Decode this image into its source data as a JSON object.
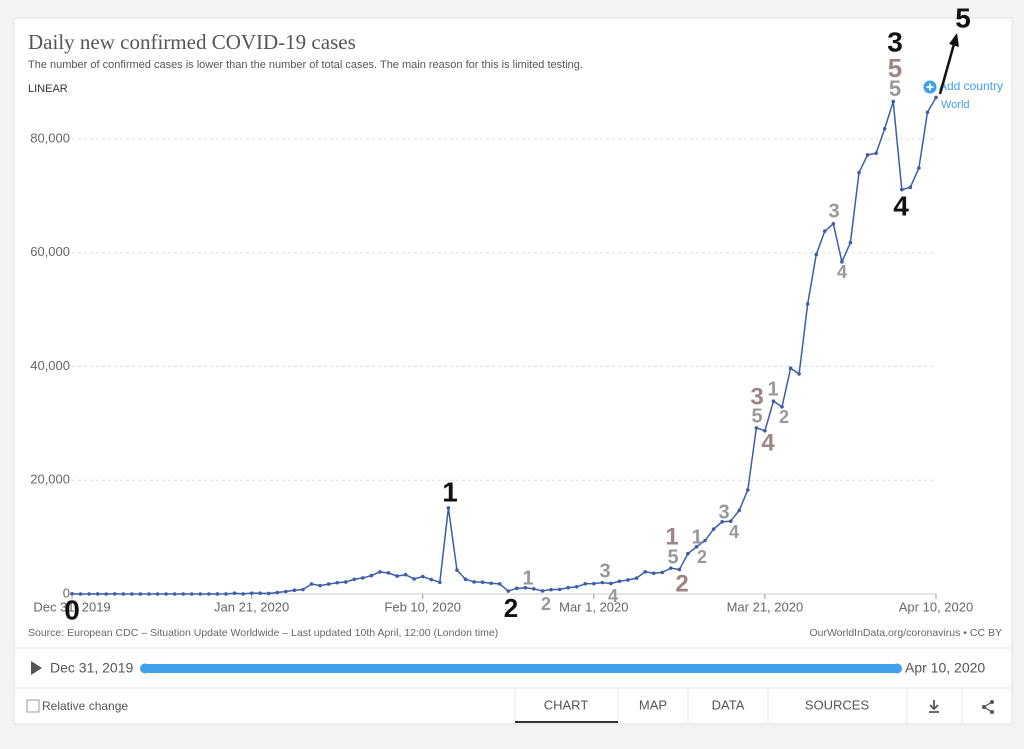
{
  "chart_data": {
    "type": "line",
    "title": "Daily new confirmed COVID-19 cases",
    "subtitle": "The number of confirmed cases is lower than the number of total cases. The main reason for this is limited testing.",
    "scale": "LINEAR",
    "x": [
      "2019-12-31",
      "2020-01-01",
      "2020-01-02",
      "2020-01-03",
      "2020-01-04",
      "2020-01-05",
      "2020-01-06",
      "2020-01-07",
      "2020-01-08",
      "2020-01-09",
      "2020-01-10",
      "2020-01-11",
      "2020-01-12",
      "2020-01-13",
      "2020-01-14",
      "2020-01-15",
      "2020-01-16",
      "2020-01-17",
      "2020-01-18",
      "2020-01-19",
      "2020-01-20",
      "2020-01-21",
      "2020-01-22",
      "2020-01-23",
      "2020-01-24",
      "2020-01-25",
      "2020-01-26",
      "2020-01-27",
      "2020-01-28",
      "2020-01-29",
      "2020-01-30",
      "2020-01-31",
      "2020-02-01",
      "2020-02-02",
      "2020-02-03",
      "2020-02-04",
      "2020-02-05",
      "2020-02-06",
      "2020-02-07",
      "2020-02-08",
      "2020-02-09",
      "2020-02-10",
      "2020-02-11",
      "2020-02-12",
      "2020-02-13",
      "2020-02-14",
      "2020-02-15",
      "2020-02-16",
      "2020-02-17",
      "2020-02-18",
      "2020-02-19",
      "2020-02-20",
      "2020-02-21",
      "2020-02-22",
      "2020-02-23",
      "2020-02-24",
      "2020-02-25",
      "2020-02-26",
      "2020-02-27",
      "2020-02-28",
      "2020-02-29",
      "2020-03-01",
      "2020-03-02",
      "2020-03-03",
      "2020-03-04",
      "2020-03-05",
      "2020-03-06",
      "2020-03-07",
      "2020-03-08",
      "2020-03-09",
      "2020-03-10",
      "2020-03-11",
      "2020-03-12",
      "2020-03-13",
      "2020-03-14",
      "2020-03-15",
      "2020-03-16",
      "2020-03-17",
      "2020-03-18",
      "2020-03-19",
      "2020-03-20",
      "2020-03-21",
      "2020-03-22",
      "2020-03-23",
      "2020-03-24",
      "2020-03-25",
      "2020-03-26",
      "2020-03-27",
      "2020-03-28",
      "2020-03-29",
      "2020-03-30",
      "2020-03-31",
      "2020-04-01",
      "2020-04-02",
      "2020-04-03",
      "2020-04-04",
      "2020-04-05",
      "2020-04-06",
      "2020-04-07",
      "2020-04-08",
      "2020-04-09",
      "2020-04-10"
    ],
    "series": [
      {
        "name": "World",
        "color": "#3c5ea8",
        "values": [
          27,
          0,
          0,
          17,
          0,
          15,
          0,
          0,
          0,
          0,
          0,
          0,
          0,
          1,
          0,
          0,
          1,
          4,
          17,
          136,
          19,
          151,
          140,
          97,
          259,
          441,
          665,
          787,
          1753,
          1466,
          1740,
          1980,
          2102,
          2590,
          2827,
          3235,
          3884,
          3697,
          3151,
          3387,
          2653,
          3070,
          2540,
          2068,
          15140,
          4208,
          2600,
          2124,
          2070,
          1888,
          1771,
          517,
          998,
          1107,
          903,
          542,
          771,
          814,
          1103,
          1271,
          1796,
          1815,
          2000,
          1850,
          2240,
          2470,
          2800,
          3900,
          3650,
          3800,
          4550,
          4300,
          7100,
          8300,
          9400,
          11400,
          12700,
          12800,
          14700,
          18300,
          29200,
          28700,
          33900,
          32900,
          39700,
          38700,
          51000,
          59700,
          63800,
          65100,
          58400,
          61800,
          74100,
          77200,
          77500,
          81800,
          86600,
          71100,
          71500,
          74900,
          84700,
          87300
        ]
      }
    ],
    "xticks": [
      {
        "value": "2019-12-31",
        "label": "Dec 31, 2019"
      },
      {
        "value": "2020-01-21",
        "label": "Jan 21, 2020"
      },
      {
        "value": "2020-02-10",
        "label": "Feb 10, 2020"
      },
      {
        "value": "2020-03-01",
        "label": "Mar 1, 2020"
      },
      {
        "value": "2020-03-21",
        "label": "Mar 21, 2020"
      },
      {
        "value": "2020-04-10",
        "label": "Apr 10, 2020"
      }
    ],
    "xlim": [
      "2019-12-31",
      "2020-04-10"
    ],
    "ylim": [
      0,
      88000
    ],
    "yticks": [
      0,
      {
        "value": 20000,
        "label": "20,000"
      },
      {
        "value": 40000,
        "label": "40,000"
      },
      {
        "value": 60000,
        "label": "60,000"
      },
      {
        "value": 80000,
        "label": "80,000"
      }
    ],
    "grid": true,
    "source": "Source: European CDC – Situation Update Worldwide – Last updated 10th April, 12:00 (London time)",
    "credit": "OurWorldInData.org/coronavirus • CC BY",
    "annotations": [
      {
        "text": "0",
        "color": "#111111"
      },
      {
        "text": "1",
        "color": "#111111"
      },
      {
        "text": "2",
        "color": "#111111"
      },
      {
        "text": "1",
        "color": "#999999"
      },
      {
        "text": "2",
        "color": "#999999"
      },
      {
        "text": "3",
        "color": "#999999"
      },
      {
        "text": "4",
        "color": "#999999"
      },
      {
        "text": "1",
        "color": "#9e8583"
      },
      {
        "text": "5",
        "color": "#999999"
      },
      {
        "text": "2",
        "color": "#9e8583"
      },
      {
        "text": "1",
        "color": "#999999"
      },
      {
        "text": "2",
        "color": "#999999"
      },
      {
        "text": "3",
        "color": "#999999"
      },
      {
        "text": "4",
        "color": "#999999"
      },
      {
        "text": "3",
        "color": "#9e8583"
      },
      {
        "text": "5",
        "color": "#999999"
      },
      {
        "text": "4",
        "color": "#9e8583"
      },
      {
        "text": "1",
        "color": "#999999"
      },
      {
        "text": "2",
        "color": "#999999"
      },
      {
        "text": "3",
        "color": "#999999"
      },
      {
        "text": "4",
        "color": "#999999"
      },
      {
        "text": "3",
        "color": "#111111"
      },
      {
        "text": "5",
        "color": "#9e8583"
      },
      {
        "text": "5",
        "color": "#999999"
      },
      {
        "text": "4",
        "color": "#111111"
      },
      {
        "text": "5",
        "color": "#111111"
      }
    ]
  },
  "controls": {
    "add_country": "Add country",
    "timeline_start": "Dec 31, 2019",
    "timeline_end": "Apr 10, 2020",
    "relative_change": "Relative change",
    "tabs": [
      "CHART",
      "MAP",
      "DATA",
      "SOURCES"
    ]
  }
}
